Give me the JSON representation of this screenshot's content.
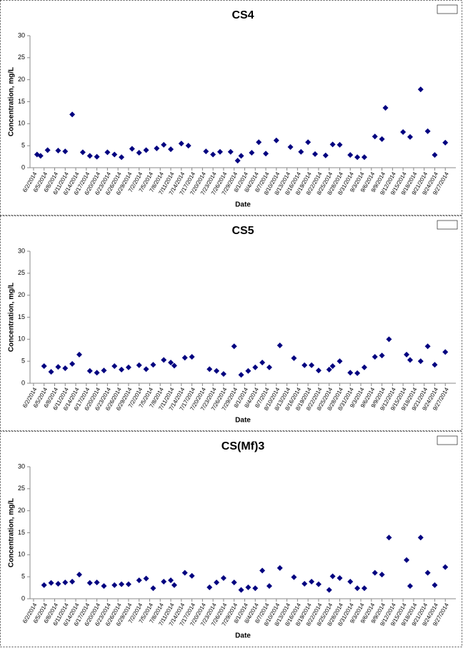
{
  "chart_data": [
    {
      "type": "scatter",
      "title": "CS4",
      "xlabel": "Date",
      "ylabel": "Concentration, mg/L",
      "color": "#000080",
      "x": [
        "6/3/2014",
        "6/4/2014",
        "6/6/2014",
        "6/9/2014",
        "6/11/2014",
        "6/13/2014",
        "6/16/2014",
        "6/18/2014",
        "6/20/2014",
        "6/23/2014",
        "6/25/2014",
        "6/27/2014",
        "6/30/2014",
        "7/2/2014",
        "7/4/2014",
        "7/7/2014",
        "7/9/2014",
        "7/11/2014",
        "7/14/2014",
        "7/16/2014",
        "7/21/2014",
        "7/23/2014",
        "7/25/2014",
        "7/28/2014",
        "7/30/2014",
        "7/31/2014",
        "8/3/2014",
        "8/5/2014",
        "8/7/2014",
        "8/10/2014",
        "8/14/2014",
        "8/17/2014",
        "8/19/2014",
        "8/21/2014",
        "8/24/2014",
        "8/26/2014",
        "8/28/2014",
        "8/31/2014",
        "9/2/2014",
        "9/4/2014",
        "9/7/2014",
        "9/9/2014",
        "9/10/2014",
        "9/15/2014",
        "9/17/2014",
        "9/20/2014",
        "9/22/2014",
        "9/24/2014",
        "9/27/2014"
      ],
      "values": [
        3.0,
        2.7,
        4.0,
        3.9,
        3.7,
        12.1,
        3.5,
        2.7,
        2.5,
        3.5,
        3.0,
        2.4,
        4.3,
        3.4,
        4.0,
        4.4,
        5.2,
        4.2,
        5.5,
        5.0,
        3.7,
        3.0,
        3.6,
        3.6,
        1.6,
        2.7,
        3.4,
        5.8,
        3.2,
        6.2,
        4.7,
        3.6,
        5.8,
        3.1,
        2.8,
        5.3,
        5.2,
        2.9,
        2.4,
        2.4,
        7.1,
        6.5,
        13.6,
        8.1,
        7.0,
        17.8,
        8.3,
        2.9,
        5.7
      ],
      "xlim": [
        "6/1/2014",
        "9/30/2014"
      ],
      "xticks": [
        "6/2/2014",
        "6/5/2014",
        "6/8/2014",
        "6/11/2014",
        "6/14/2014",
        "6/17/2014",
        "6/20/2014",
        "6/23/2014",
        "6/26/2014",
        "6/29/2014",
        "7/2/2014",
        "7/5/2014",
        "7/8/2014",
        "7/11/2014",
        "7/14/2014",
        "7/17/2014",
        "7/20/2014",
        "7/23/2014",
        "7/26/2014",
        "7/29/2014",
        "8/1/2014",
        "8/4/2014",
        "8/7/2014",
        "8/10/2014",
        "8/13/2014",
        "8/16/2014",
        "8/19/2014",
        "8/22/2014",
        "8/25/2014",
        "8/28/2014",
        "8/31/2014",
        "9/3/2014",
        "9/6/2014",
        "9/9/2014",
        "9/12/2014",
        "9/15/2014",
        "9/18/2014",
        "9/21/2014",
        "9/24/2014",
        "9/27/2014"
      ],
      "ylim": [
        0,
        30
      ],
      "yticks": [
        0,
        5,
        10,
        15,
        20,
        25,
        30
      ],
      "grid": false
    },
    {
      "type": "scatter",
      "title": "CS5",
      "xlabel": "Date",
      "ylabel": "Concentration, mg/L",
      "color": "#000080",
      "x": [
        "6/5/2014",
        "6/7/2014",
        "6/9/2014",
        "6/11/2014",
        "6/13/2014",
        "6/15/2014",
        "6/18/2014",
        "6/20/2014",
        "6/22/2014",
        "6/25/2014",
        "6/27/2014",
        "6/29/2014",
        "7/2/2014",
        "7/4/2014",
        "7/6/2014",
        "7/9/2014",
        "7/11/2014",
        "7/12/2014",
        "7/15/2014",
        "7/17/2014",
        "7/22/2014",
        "7/24/2014",
        "7/26/2014",
        "7/29/2014",
        "7/31/2014",
        "8/2/2014",
        "8/4/2014",
        "8/6/2014",
        "8/8/2014",
        "8/11/2014",
        "8/15/2014",
        "8/18/2014",
        "8/20/2014",
        "8/22/2014",
        "8/25/2014",
        "8/26/2014",
        "8/28/2014",
        "8/31/2014",
        "9/2/2014",
        "9/4/2014",
        "9/7/2014",
        "9/9/2014",
        "9/11/2014",
        "9/16/2014",
        "9/17/2014",
        "9/20/2014",
        "9/22/2014",
        "9/24/2014",
        "9/27/2014"
      ],
      "values": [
        3.9,
        2.6,
        3.7,
        3.4,
        4.4,
        6.5,
        2.8,
        2.4,
        2.9,
        3.9,
        3.1,
        3.6,
        4.1,
        3.2,
        4.2,
        5.3,
        4.7,
        4.0,
        5.8,
        6.0,
        3.2,
        2.8,
        2.1,
        8.4,
        1.9,
        2.8,
        3.6,
        4.7,
        3.6,
        8.6,
        5.7,
        4.1,
        4.1,
        2.9,
        3.1,
        3.9,
        5.0,
        2.4,
        2.3,
        3.6,
        6.0,
        6.3,
        10.0,
        6.5,
        5.3,
        5.0,
        8.4,
        4.2,
        7.1
      ],
      "xlim": [
        "6/1/2014",
        "9/30/2014"
      ],
      "xticks": [
        "6/2/2014",
        "6/5/2014",
        "6/8/2014",
        "6/11/2014",
        "6/14/2014",
        "6/17/2014",
        "6/20/2014",
        "6/23/2014",
        "6/26/2014",
        "6/29/2014",
        "7/2/2014",
        "7/5/2014",
        "7/8/2014",
        "7/11/2014",
        "7/14/2014",
        "7/17/2014",
        "7/20/2014",
        "7/23/2014",
        "7/26/2014",
        "7/29/2014",
        "8/1/2014",
        "8/4/2014",
        "8/7/2014",
        "8/10/2014",
        "8/13/2014",
        "8/16/2014",
        "8/19/2014",
        "8/22/2014",
        "8/25/2014",
        "8/28/2014",
        "8/31/2014",
        "9/3/2014",
        "9/6/2014",
        "9/9/2014",
        "9/12/2014",
        "9/15/2014",
        "9/18/2014",
        "9/21/2014",
        "9/24/2014",
        "9/27/2014"
      ],
      "ylim": [
        0,
        30
      ],
      "yticks": [
        0,
        5,
        10,
        15,
        20,
        25,
        30
      ],
      "grid": false
    },
    {
      "type": "scatter",
      "title": "CS(Mf)3",
      "xlabel": "Date",
      "ylabel": "Concentration, mg/L",
      "color": "#000080",
      "x": [
        "6/5/2014",
        "6/7/2014",
        "6/9/2014",
        "6/11/2014",
        "6/13/2014",
        "6/15/2014",
        "6/18/2014",
        "6/20/2014",
        "6/22/2014",
        "6/25/2014",
        "6/27/2014",
        "6/29/2014",
        "7/2/2014",
        "7/4/2014",
        "7/6/2014",
        "7/9/2014",
        "7/11/2014",
        "7/12/2014",
        "7/15/2014",
        "7/17/2014",
        "7/22/2014",
        "7/24/2014",
        "7/26/2014",
        "7/29/2014",
        "7/31/2014",
        "8/2/2014",
        "8/4/2014",
        "8/6/2014",
        "8/8/2014",
        "8/11/2014",
        "8/15/2014",
        "8/18/2014",
        "8/20/2014",
        "8/22/2014",
        "8/25/2014",
        "8/26/2014",
        "8/28/2014",
        "8/31/2014",
        "9/2/2014",
        "9/4/2014",
        "9/7/2014",
        "9/9/2014",
        "9/11/2014",
        "9/16/2014",
        "9/17/2014",
        "9/20/2014",
        "9/22/2014",
        "9/24/2014",
        "9/27/2014"
      ],
      "values": [
        3.1,
        3.6,
        3.4,
        3.7,
        3.9,
        5.5,
        3.6,
        3.7,
        2.9,
        3.1,
        3.3,
        3.3,
        4.2,
        4.6,
        2.4,
        3.9,
        4.2,
        3.1,
        5.9,
        5.2,
        2.6,
        3.7,
        4.7,
        3.7,
        2.0,
        2.6,
        2.4,
        6.4,
        2.9,
        7.0,
        4.9,
        3.4,
        3.9,
        3.3,
        2.0,
        5.1,
        4.7,
        3.9,
        2.4,
        2.4,
        5.9,
        5.5,
        13.9,
        8.8,
        2.9,
        13.9,
        5.9,
        3.1,
        7.2
      ],
      "xlim": [
        "6/1/2014",
        "9/30/2014"
      ],
      "xticks": [
        "6/2/2014",
        "6/5/2014",
        "6/8/2014",
        "6/11/2014",
        "6/14/2014",
        "6/17/2014",
        "6/20/2014",
        "6/23/2014",
        "6/26/2014",
        "6/29/2014",
        "7/2/2014",
        "7/5/2014",
        "7/8/2014",
        "7/11/2014",
        "7/14/2014",
        "7/17/2014",
        "7/20/2014",
        "7/23/2014",
        "7/26/2014",
        "7/29/2014",
        "8/1/2014",
        "8/4/2014",
        "8/7/2014",
        "8/10/2014",
        "8/13/2014",
        "8/16/2014",
        "8/19/2014",
        "8/22/2014",
        "8/25/2014",
        "8/28/2014",
        "8/31/2014",
        "9/3/2014",
        "9/6/2014",
        "9/9/2014",
        "9/12/2014",
        "9/15/2014",
        "9/18/2014",
        "9/21/2014",
        "9/24/2014",
        "9/27/2014"
      ],
      "ylim": [
        0,
        30
      ],
      "yticks": [
        0,
        5,
        10,
        15,
        20,
        25,
        30
      ],
      "grid": false
    }
  ]
}
